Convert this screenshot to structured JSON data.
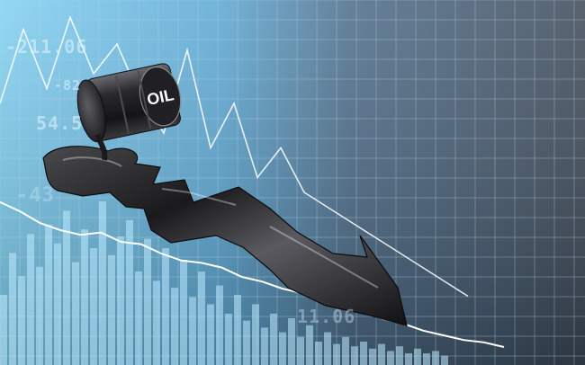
{
  "scene": {
    "label": "Oil barrel spilling into falling arrow over stock chart",
    "barrel_text": "OIL",
    "tickers": [
      "-211.06",
      "-82",
      "54.5",
      "-43",
      "11.06"
    ],
    "colors": {
      "sky_top": "#6fc6ee",
      "sky_bottom": "#3f84b8",
      "grid_dark": "#3d4c5c",
      "oil": "#1b1b1d",
      "line": "#ffffff"
    },
    "bar_heights": [
      0.3,
      0.48,
      0.38,
      0.56,
      0.42,
      0.6,
      0.52,
      0.66,
      0.44,
      0.58,
      0.5,
      0.7,
      0.47,
      0.55,
      0.62,
      0.4,
      0.54,
      0.36,
      0.5,
      0.33,
      0.45,
      0.29,
      0.4,
      0.26,
      0.34,
      0.22,
      0.3,
      0.19,
      0.26,
      0.16,
      0.22,
      0.14,
      0.2,
      0.12,
      0.17,
      0.1,
      0.14,
      0.09,
      0.12,
      0.08,
      0.1,
      0.07,
      0.09,
      0.06,
      0.08,
      0.05,
      0.07,
      0.05,
      0.06,
      0.04
    ],
    "trend_line": [
      0.62,
      0.58,
      0.53,
      0.5,
      0.48,
      0.49,
      0.45,
      0.44,
      0.4,
      0.37,
      0.36,
      0.34,
      0.3,
      0.28,
      0.25,
      0.23,
      0.2,
      0.18,
      0.15,
      0.12,
      0.1,
      0.07,
      0.05,
      0.03,
      0.02,
      0.0
    ],
    "spike_line": [
      0.7,
      0.95,
      0.75,
      0.99,
      0.8,
      0.9,
      0.72,
      0.6,
      0.88,
      0.55,
      0.7,
      0.45,
      0.55,
      0.4,
      0.35,
      0.3,
      0.25,
      0.2,
      0.15,
      0.1,
      0.05
    ]
  }
}
